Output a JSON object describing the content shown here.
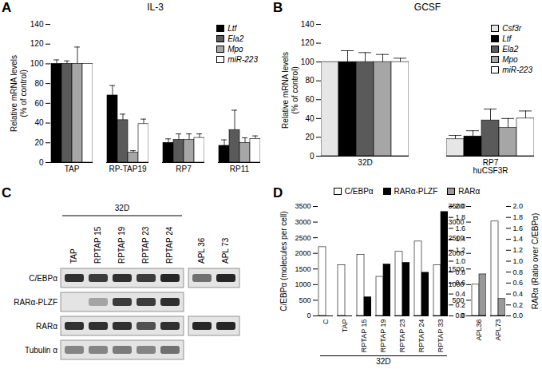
{
  "chart_data": [
    {
      "panel": "A",
      "type": "bar",
      "title": "IL-3",
      "y_label": [
        "Relative mRNA levels",
        "(% of control)"
      ],
      "categories": [
        "TAP",
        "RP-TAP19",
        "RP7",
        "RP11"
      ],
      "series": [
        {
          "name": "Ltf",
          "color": "#000000",
          "values": [
            100,
            68,
            20,
            17
          ],
          "errors": [
            4,
            10,
            4,
            6
          ]
        },
        {
          "name": "Ela2",
          "color": "#5a5a5a",
          "values": [
            100,
            43,
            23,
            33
          ],
          "errors": [
            3,
            6,
            6,
            20
          ]
        },
        {
          "name": "Mpo",
          "color": "#a6a6a6",
          "values": [
            100,
            10,
            23,
            20
          ],
          "errors": [
            17,
            2,
            6,
            5
          ]
        },
        {
          "name": "miR-223",
          "color": "#ffffff",
          "values": [
            100,
            39,
            25,
            24
          ],
          "errors": [
            null,
            5,
            4,
            3
          ]
        }
      ],
      "ylim": [
        0,
        140
      ],
      "yticks": [
        0,
        20,
        40,
        60,
        80,
        100,
        120,
        140
      ],
      "legend": "top-right"
    },
    {
      "panel": "B",
      "type": "bar",
      "title": "GCSF",
      "y_label": [
        "Relative mRNA levels",
        "(% of control)"
      ],
      "categories": [
        "32D",
        "RP7\nhuCSF3R"
      ],
      "series": [
        {
          "name": "Csf3r",
          "color": "#e6e6e6",
          "values": [
            100,
            18
          ],
          "errors": [
            null,
            4
          ]
        },
        {
          "name": "Ltf",
          "color": "#000000",
          "values": [
            100,
            21
          ],
          "errors": [
            12,
            6
          ]
        },
        {
          "name": "Ela2",
          "color": "#5a5a5a",
          "values": [
            100,
            38
          ],
          "errors": [
            10,
            12
          ]
        },
        {
          "name": "Mpo",
          "color": "#a6a6a6",
          "values": [
            100,
            30
          ],
          "errors": [
            8,
            10
          ]
        },
        {
          "name": "miR-223",
          "color": "#ffffff",
          "values": [
            100,
            40
          ],
          "errors": [
            4,
            8
          ]
        }
      ],
      "ylim": [
        0,
        140
      ],
      "yticks": [
        0,
        20,
        40,
        60,
        80,
        100,
        120,
        140
      ],
      "legend": "top-right"
    },
    {
      "panel": "C",
      "type": "blot",
      "groups": [
        {
          "label": "32D",
          "lanes": [
            "TAP",
            "RPTAP 15",
            "RPTAP 19",
            "RPTAP 23",
            "RPTAP 24"
          ]
        }
      ],
      "lanes": [
        "TAP",
        "RPTAP 15",
        "RPTAP 19",
        "RPTAP 23",
        "RPTAP 24",
        "APL 36",
        "APL 73"
      ],
      "rows": [
        {
          "name": "C/EBPα",
          "bands": [
            0.85,
            0.8,
            0.85,
            0.8,
            0.9,
            0.55,
            0.9
          ]
        },
        {
          "name": "RARα-PLZF",
          "bands": [
            0,
            0.3,
            0.8,
            0.8,
            0.85,
            null,
            null
          ]
        },
        {
          "name": "RARα",
          "bands": [
            0.85,
            0.85,
            0.85,
            0.7,
            0.85,
            0.9,
            0.9
          ]
        },
        {
          "name": "Tubulin α",
          "bands": [
            0.45,
            0.45,
            0.5,
            0.45,
            0.55,
            null,
            null
          ]
        }
      ]
    },
    {
      "panel": "D",
      "type": "bar",
      "y_label": "C/EBPα (molecules per cell)",
      "y2_label": "RARα (Ratio over C/EBPα)",
      "categories": [
        "C",
        "TAP",
        "RPTAP 15",
        "RPTAP 19",
        "RPTAP 23",
        "RPTAP 24",
        "RPTAP 33",
        null,
        "APL36",
        "APL73"
      ],
      "groups": [
        {
          "label": "32D",
          "categories": [
            "C",
            "TAP",
            "RPTAP 15",
            "RPTAP 19",
            "RPTAP 23",
            "RPTAP 24",
            "RPTAP 33"
          ]
        }
      ],
      "series": [
        {
          "name": "C/EBPα",
          "color": "#ffffff",
          "values": [
            2200,
            1620,
            1950,
            1250,
            2050,
            2380,
            1620,
            null,
            1000,
            3020
          ]
        },
        {
          "name": "RARα-PLZF",
          "color": "#000000",
          "axis": "y2",
          "values": [
            null,
            null,
            0.34,
            0.94,
            0.97,
            0.79,
            1.9,
            null,
            null,
            null
          ]
        },
        {
          "name": "RARα",
          "color": "#999999",
          "axis": "y2",
          "values": [
            null,
            null,
            null,
            null,
            null,
            null,
            null,
            null,
            0.76,
            0.31
          ]
        }
      ],
      "ylim": [
        0,
        3500
      ],
      "yticks": [
        0,
        500,
        1000,
        1500,
        2000,
        2500,
        3000,
        3500
      ],
      "y2lim": [
        0,
        2
      ],
      "y2ticks": [
        {
          "value": 0,
          "label": "0.0"
        },
        {
          "value": 0.2,
          "label": "0.2"
        },
        {
          "value": 0.4,
          "label": "0.4"
        },
        {
          "value": 0.6,
          "label": "0.6"
        },
        {
          "value": 0.8,
          "label": "0.8"
        },
        {
          "value": 1,
          "label": "1.0"
        },
        {
          "value": 1.2,
          "label": "1.2"
        },
        {
          "value": 1.4,
          "label": "1.4"
        },
        {
          "value": 1.6,
          "label": "1.6"
        },
        {
          "value": 1.8,
          "label": "1.8"
        },
        {
          "value": 2,
          "label": "2.0"
        }
      ],
      "legend": "top"
    }
  ]
}
